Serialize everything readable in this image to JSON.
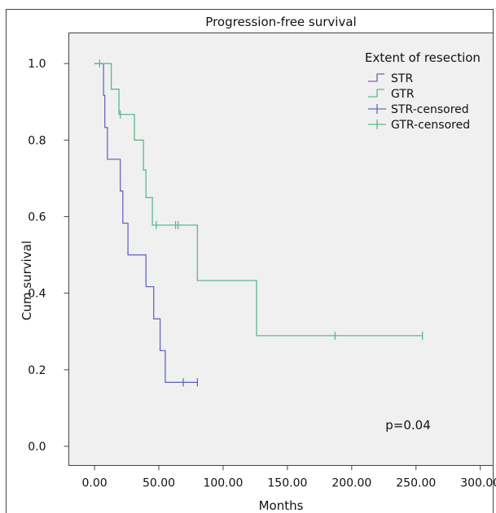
{
  "chart_data": {
    "type": "line",
    "title": "Progression-free survival",
    "xlabel": "Months",
    "ylabel": "Cum survival",
    "xlim": [
      -20,
      310
    ],
    "ylim": [
      -0.05,
      1.08
    ],
    "xticks": [
      0,
      50,
      100,
      150,
      200,
      250,
      300
    ],
    "xtick_labels": [
      "0.00",
      "50.00",
      "100.00",
      "150.00",
      "200.00",
      "250.00",
      "300.00"
    ],
    "yticks": [
      0.0,
      0.2,
      0.4,
      0.6,
      0.8,
      1.0
    ],
    "ytick_labels": [
      "0.0",
      "0.2",
      "0.4",
      "0.6",
      "0.8",
      "1.0"
    ],
    "legend_title": "Extent of resection",
    "legend_position": "top-right",
    "annotation": "p=0.04",
    "grid": false,
    "background": "#f0f0f0",
    "series": [
      {
        "name": "STR",
        "color": "#6666c0",
        "steps": [
          [
            0,
            1.0
          ],
          [
            7,
            0.917
          ],
          [
            8,
            0.833
          ],
          [
            10,
            0.75
          ],
          [
            20,
            0.667
          ],
          [
            22,
            0.583
          ],
          [
            26,
            0.5
          ],
          [
            40,
            0.417
          ],
          [
            46,
            0.333
          ],
          [
            51,
            0.25
          ],
          [
            55,
            0.167
          ],
          [
            80,
            0.167
          ]
        ]
      },
      {
        "name": "GTR",
        "color": "#5ab98c",
        "steps": [
          [
            0,
            1.0
          ],
          [
            13,
            0.933
          ],
          [
            19,
            0.867
          ],
          [
            31,
            0.8
          ],
          [
            38,
            0.722
          ],
          [
            40,
            0.65
          ],
          [
            45,
            0.578
          ],
          [
            80,
            0.433
          ],
          [
            126,
            0.289
          ],
          [
            255,
            0.289
          ]
        ]
      }
    ],
    "censored": [
      {
        "name": "STR-censored",
        "color": "#6666c0",
        "points": [
          [
            69,
            0.167
          ],
          [
            80,
            0.167
          ]
        ]
      },
      {
        "name": "GTR-censored",
        "color": "#5ab98c",
        "points": [
          [
            4,
            1.0
          ],
          [
            20,
            0.867
          ],
          [
            48,
            0.578
          ],
          [
            63,
            0.578
          ],
          [
            65,
            0.578
          ],
          [
            187,
            0.289
          ],
          [
            255,
            0.289
          ]
        ]
      }
    ]
  }
}
